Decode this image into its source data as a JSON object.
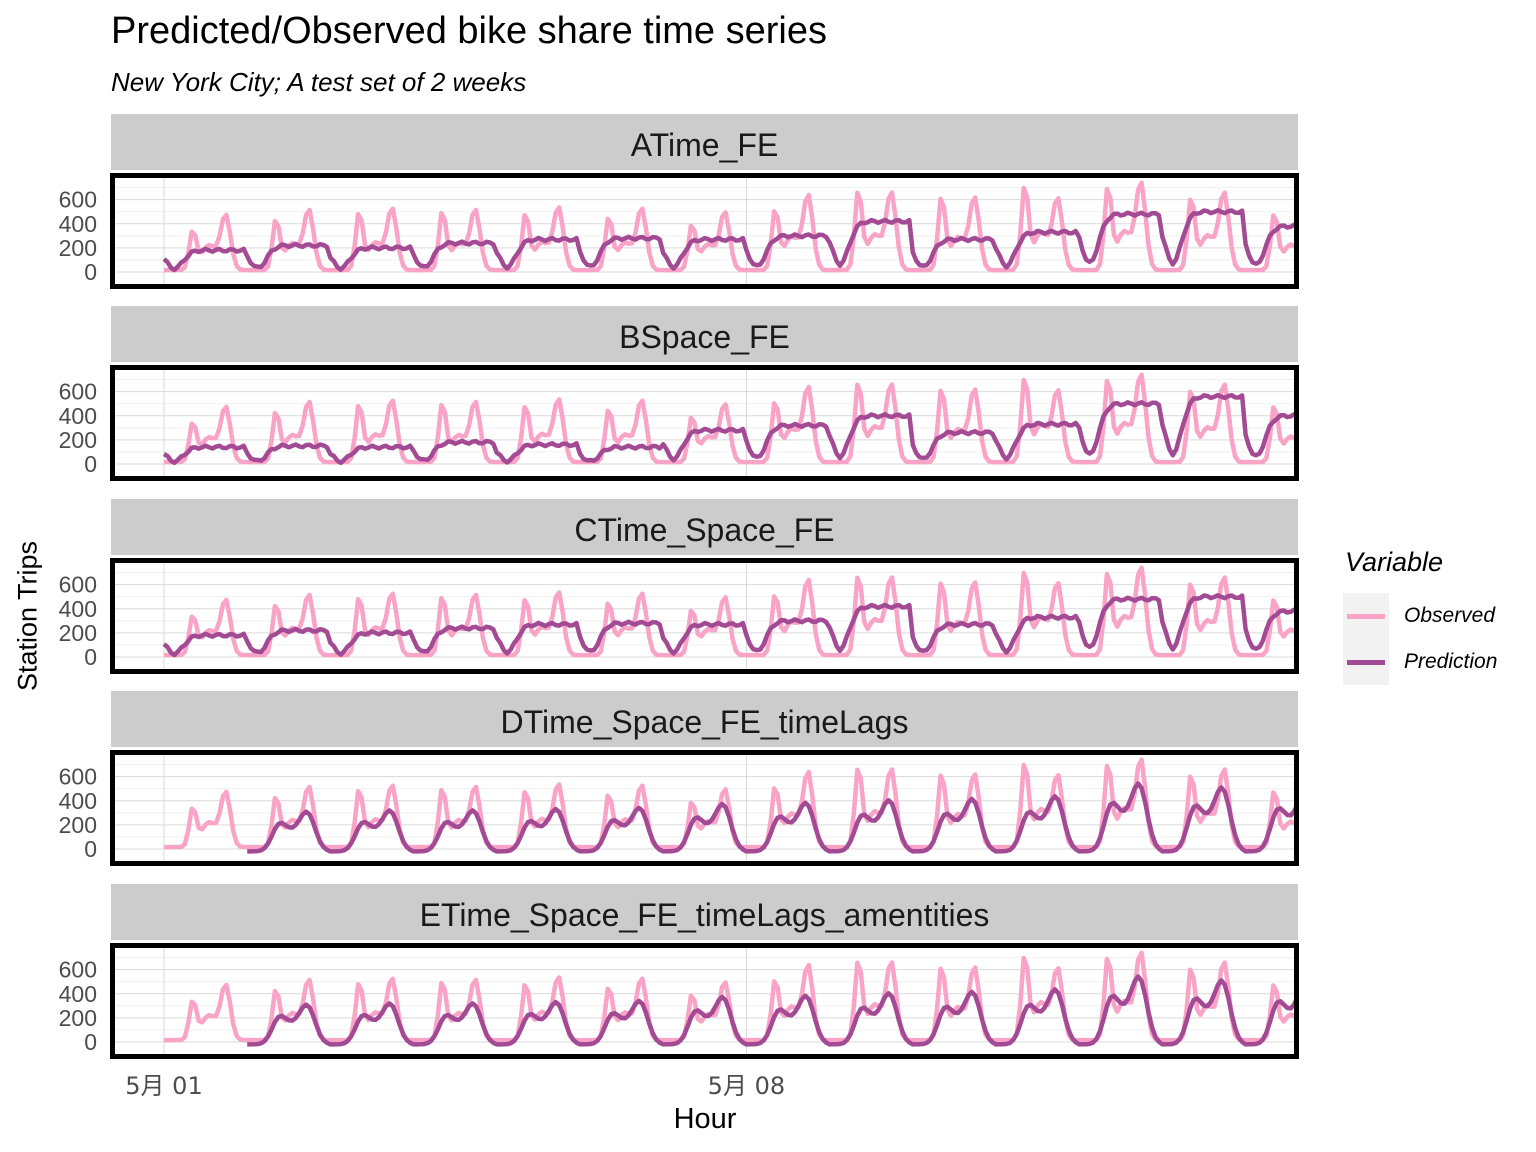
{
  "title": "Predicted/Observed bike share time series",
  "subtitle": "New York City; A test set of 2 weeks",
  "legend": {
    "title": "Variable",
    "items": [
      {
        "label": "Observed",
        "color": "#f9a3c6"
      },
      {
        "label": "Prediction",
        "color": "#a24a94"
      }
    ]
  },
  "chart_data": {
    "type": "line",
    "facets": [
      "ATime_FE",
      "BSpace_FE",
      "CTime_Space_FE",
      "DTime_Space_FE_timeLags",
      "ETime_Space_FE_timeLags_amentities"
    ],
    "xlabel": "Hour",
    "ylabel": "Station Trips",
    "x_range": [
      "2018-05-01 00:00",
      "2018-05-14 23:00"
    ],
    "x_ticks": [
      {
        "label": "5月 01",
        "date": "2018-05-01"
      },
      {
        "label": "5月 08",
        "date": "2018-05-08"
      }
    ],
    "ylim": [
      -100,
      780
    ],
    "y_ticks": [
      0,
      200,
      400,
      600
    ],
    "grid": true,
    "legend_position": "right",
    "series": [
      {
        "name": "Observed",
        "daily_peaks": {
          "dates": [
            "05-01",
            "05-02",
            "05-03",
            "05-04",
            "05-05",
            "05-06",
            "05-07",
            "05-08",
            "05-09",
            "05-10",
            "05-11",
            "05-12",
            "05-13",
            "05-14"
          ],
          "am_peak": [
            330,
            420,
            480,
            490,
            470,
            440,
            380,
            500,
            660,
            610,
            700,
            690,
            600,
            470
          ],
          "pm_peak": [
            460,
            500,
            510,
            500,
            520,
            510,
            480,
            620,
            640,
            600,
            590,
            720,
            640,
            470
          ]
        }
      },
      {
        "name": "Prediction",
        "daily_level": {
          "dates": [
            "05-01",
            "05-02",
            "05-03",
            "05-04",
            "05-05",
            "05-06",
            "05-07",
            "05-08",
            "05-09",
            "05-10",
            "05-11",
            "05-12",
            "05-13",
            "05-14"
          ],
          "ATime_FE": [
            180,
            220,
            200,
            240,
            270,
            280,
            270,
            300,
            420,
            270,
            330,
            480,
            500,
            380
          ],
          "BSpace_FE": [
            140,
            150,
            140,
            180,
            160,
            140,
            280,
            320,
            400,
            260,
            330,
            500,
            560,
            400
          ],
          "CTime_Space_FE": [
            180,
            220,
            200,
            240,
            270,
            280,
            270,
            300,
            420,
            270,
            330,
            480,
            500,
            380
          ],
          "DTime_Space_FE_timeLags": [
            null,
            310,
            320,
            320,
            330,
            340,
            370,
            380,
            400,
            410,
            430,
            530,
            500,
            470
          ],
          "ETime_Space_FE_timeLags_amentities": [
            null,
            310,
            320,
            320,
            330,
            340,
            370,
            380,
            400,
            410,
            430,
            530,
            500,
            470
          ]
        }
      }
    ]
  }
}
